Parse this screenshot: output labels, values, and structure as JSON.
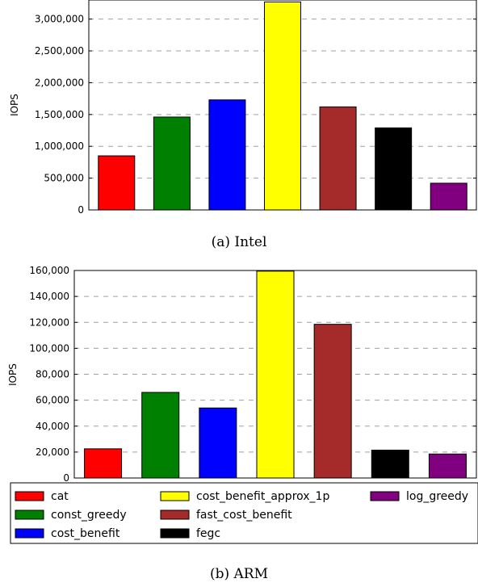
{
  "chart_data": [
    {
      "type": "bar",
      "categories": [
        "cat",
        "const_greedy",
        "cost_benefit",
        "cost_benefit_approx_1p",
        "fast_cost_benefit",
        "fegc",
        "log_greedy"
      ],
      "values": [
        850000,
        1460000,
        1730000,
        3270000,
        1620000,
        1290000,
        420000
      ],
      "colors": [
        "#ff0000",
        "#008000",
        "#0000ff",
        "#ffff00",
        "#a52a2a",
        "#000000",
        "#800080"
      ],
      "ylabel": "IOPS",
      "ylim": [
        0,
        3300000
      ],
      "yticks": [
        0,
        500000,
        1000000,
        1500000,
        2000000,
        2500000,
        3000000
      ],
      "ytick_labels": [
        "0",
        "500,000",
        "1,000,000",
        "1,500,000",
        "2,000,000",
        "2,500,000",
        "3,000,000"
      ],
      "caption": "(a) Intel",
      "grid": true
    },
    {
      "type": "bar",
      "categories": [
        "cat",
        "const_greedy",
        "cost_benefit",
        "cost_benefit_approx_1p",
        "fast_cost_benefit",
        "fegc",
        "log_greedy"
      ],
      "values": [
        22500,
        66000,
        54000,
        159500,
        118500,
        21500,
        18500
      ],
      "colors": [
        "#ff0000",
        "#008000",
        "#0000ff",
        "#ffff00",
        "#a52a2a",
        "#000000",
        "#800080"
      ],
      "ylabel": "IOPS",
      "ylim": [
        0,
        160000
      ],
      "yticks": [
        0,
        20000,
        40000,
        60000,
        80000,
        100000,
        120000,
        140000,
        160000
      ],
      "ytick_labels": [
        "0",
        "20,000",
        "40,000",
        "60,000",
        "80,000",
        "100,000",
        "120,000",
        "140,000",
        "160,000"
      ],
      "caption": "(b) ARM",
      "grid": true
    }
  ],
  "legend": {
    "placement": "bottom",
    "entries": [
      {
        "label": "cat",
        "color": "#ff0000"
      },
      {
        "label": "const_greedy",
        "color": "#008000"
      },
      {
        "label": "cost_benefit",
        "color": "#0000ff"
      },
      {
        "label": "cost_benefit_approx_1p",
        "color": "#ffff00"
      },
      {
        "label": "fast_cost_benefit",
        "color": "#a52a2a"
      },
      {
        "label": "fegc",
        "color": "#000000"
      },
      {
        "label": "log_greedy",
        "color": "#800080"
      }
    ]
  }
}
